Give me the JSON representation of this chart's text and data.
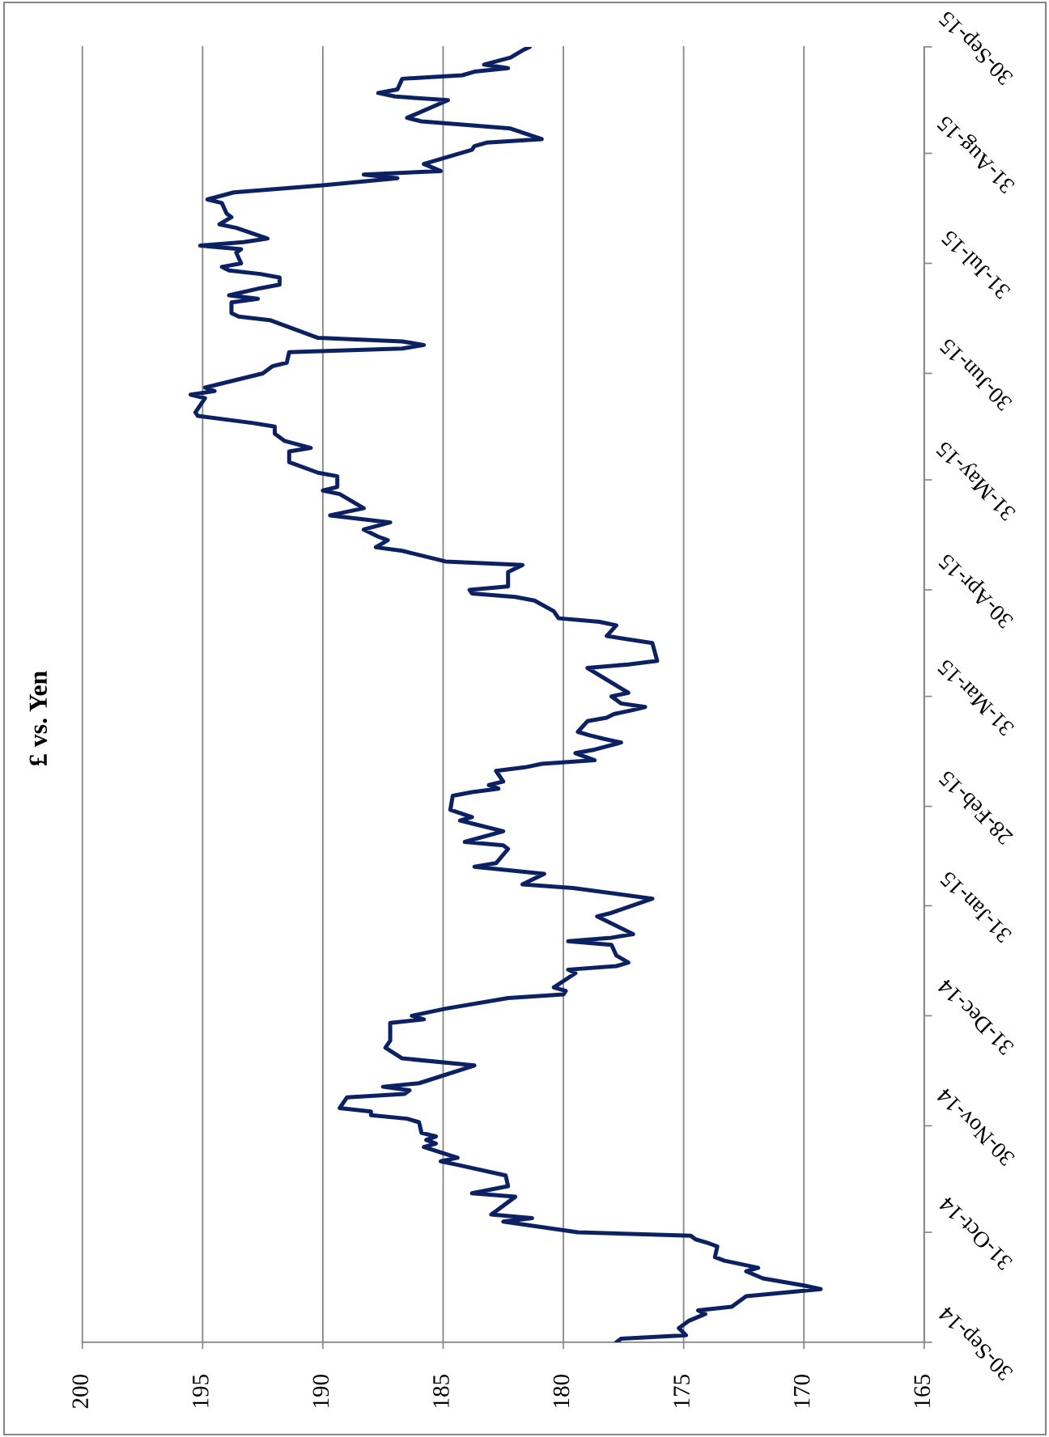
{
  "chart_data": {
    "type": "line",
    "title": "£ vs. Yen",
    "orientation": "horizontal",
    "x": [
      "2014-09-30",
      "2014-10-01",
      "2014-10-02",
      "2014-10-04",
      "2014-10-06",
      "2014-10-08",
      "2014-10-09",
      "2014-10-10",
      "2014-10-13",
      "2014-10-15",
      "2014-10-16",
      "2014-10-18",
      "2014-10-20",
      "2014-10-21",
      "2014-10-23",
      "2014-10-24",
      "2014-10-27",
      "2014-10-28",
      "2014-10-29",
      "2014-10-30",
      "2014-10-31",
      "2014-11-03",
      "2014-11-04",
      "2014-11-05",
      "2014-11-06",
      "2014-11-10",
      "2014-11-11",
      "2014-11-13",
      "2014-11-16",
      "2014-11-19",
      "2014-11-20",
      "2014-11-21",
      "2014-11-24",
      "2014-11-25",
      "2014-11-26",
      "2014-11-27",
      "2014-11-28",
      "2014-12-01",
      "2014-12-02",
      "2014-12-03",
      "2014-12-04",
      "2014-12-05",
      "2014-12-08",
      "2014-12-09",
      "2014-12-10",
      "2014-12-11",
      "2014-12-12",
      "2014-12-17",
      "2014-12-19",
      "2014-12-22",
      "2014-12-24",
      "2014-12-29",
      "2014-12-30",
      "2014-12-31",
      "2015-01-02",
      "2015-01-05",
      "2015-01-06",
      "2015-01-07",
      "2015-01-08",
      "2015-01-12",
      "2015-01-13",
      "2015-01-14",
      "2015-01-15",
      "2015-01-17",
      "2015-01-20",
      "2015-01-21",
      "2015-01-22",
      "2015-01-23",
      "2015-01-28",
      "2015-01-29",
      "2015-02-02",
      "2015-02-05",
      "2015-02-06",
      "2015-02-09",
      "2015-02-11",
      "2015-02-12",
      "2015-02-16",
      "2015-02-17",
      "2015-02-18",
      "2015-02-21",
      "2015-02-23",
      "2015-02-24",
      "2015-02-25",
      "2015-02-27",
      "2015-03-03",
      "2015-03-04",
      "2015-03-05",
      "2015-03-06",
      "2015-03-07",
      "2015-03-10",
      "2015-03-11",
      "2015-03-12",
      "2015-03-13",
      "2015-03-15",
      "2015-03-16",
      "2015-03-18",
      "2015-03-19",
      "2015-03-20",
      "2015-03-21",
      "2015-03-24",
      "2015-03-25",
      "2015-03-26",
      "2015-03-27",
      "2015-03-28",
      "2015-03-29",
      "2015-03-31",
      "2015-04-01",
      "2015-04-08",
      "2015-04-09",
      "2015-04-10",
      "2015-04-15",
      "2015-04-17",
      "2015-04-20",
      "2015-04-21",
      "2015-04-22",
      "2015-04-24",
      "2015-04-27",
      "2015-04-28",
      "2015-04-29",
      "2015-04-30",
      "2015-05-01",
      "2015-05-05",
      "2015-05-07",
      "2015-05-08",
      "2015-05-11",
      "2015-05-12",
      "2015-05-14",
      "2015-05-15",
      "2015-05-17",
      "2015-05-19",
      "2015-05-21",
      "2015-05-23",
      "2015-05-27",
      "2015-05-28",
      "2015-05-29",
      "2015-06-01",
      "2015-06-02",
      "2015-06-05",
      "2015-06-08",
      "2015-06-09",
      "2015-06-11",
      "2015-06-13",
      "2015-06-15",
      "2015-06-16",
      "2015-06-18",
      "2015-06-19",
      "2015-06-23",
      "2015-06-24",
      "2015-06-25",
      "2015-06-26",
      "2015-06-30",
      "2015-07-02",
      "2015-07-03",
      "2015-07-06",
      "2015-07-07",
      "2015-07-08",
      "2015-07-09",
      "2015-07-10",
      "2015-07-15",
      "2015-07-16",
      "2015-07-17",
      "2015-07-20",
      "2015-07-21",
      "2015-07-22",
      "2015-07-24",
      "2015-07-25",
      "2015-07-27",
      "2015-07-28",
      "2015-07-29",
      "2015-07-30",
      "2015-07-31",
      "2015-08-03",
      "2015-08-04",
      "2015-08-05",
      "2015-08-06",
      "2015-08-07",
      "2015-08-10",
      "2015-08-11",
      "2015-08-13",
      "2015-08-14",
      "2015-08-17",
      "2015-08-18",
      "2015-08-20",
      "2015-08-22",
      "2015-08-24",
      "2015-08-25",
      "2015-08-26",
      "2015-08-28",
      "2015-09-01",
      "2015-09-02",
      "2015-09-03",
      "2015-09-04",
      "2015-09-07",
      "2015-09-09",
      "2015-09-10",
      "2015-09-15",
      "2015-09-16",
      "2015-09-17",
      "2015-09-18",
      "2015-09-21",
      "2015-09-22",
      "2015-09-23",
      "2015-09-24",
      "2015-09-25",
      "2015-09-27",
      "2015-09-29",
      "2015-09-30"
    ],
    "values": [
      177.8,
      177.6,
      174.9,
      175.2,
      174.8,
      174.1,
      174.4,
      173.0,
      172.4,
      169.3,
      170.0,
      171.7,
      172.4,
      171.9,
      173.3,
      173.7,
      173.6,
      174.0,
      174.5,
      174.7,
      179.4,
      182.5,
      181.3,
      183.0,
      182.8,
      182.0,
      183.8,
      182.3,
      182.4,
      184.4,
      185.1,
      184.4,
      185.8,
      185.3,
      185.7,
      185.3,
      185.9,
      186.0,
      186.5,
      188.0,
      188.0,
      189.3,
      189.0,
      186.6,
      186.4,
      187.5,
      186.0,
      183.7,
      186.7,
      187.4,
      187.2,
      187.2,
      185.8,
      186.3,
      184.9,
      182.3,
      180.0,
      179.9,
      180.4,
      179.5,
      179.8,
      177.8,
      177.3,
      177.8,
      178.0,
      179.8,
      178.0,
      177.1,
      178.6,
      178.0,
      176.3,
      179.6,
      181.7,
      180.8,
      183.7,
      182.8,
      182.3,
      182.5,
      184.1,
      182.5,
      183.7,
      184.3,
      183.8,
      184.7,
      184.6,
      183.8,
      182.7,
      183.1,
      182.5,
      182.8,
      181.6,
      180.9,
      178.7,
      179.5,
      178.7,
      177.6,
      178.3,
      178.9,
      179.4,
      179.0,
      178.2,
      177.9,
      177.2,
      176.6,
      177.6,
      178.0,
      177.3,
      179.0,
      177.3,
      176.1,
      176.3,
      178.2,
      177.8,
      178.5,
      180.2,
      180.4,
      181.2,
      182.0,
      183.8,
      183.9,
      182.3,
      182.3,
      181.7,
      184.9,
      186.7,
      187.8,
      187.3,
      187.7,
      188.3,
      187.2,
      189.7,
      188.3,
      189.3,
      190.0,
      189.4,
      189.4,
      190.2,
      191.4,
      191.4,
      190.5,
      191.6,
      192.0,
      192.0,
      192.9,
      195.2,
      195.3,
      194.9,
      195.5,
      194.5,
      194.9,
      192.5,
      192.1,
      191.5,
      191.4,
      186.7,
      185.8,
      186.7,
      190.2,
      192.2,
      193.5,
      193.8,
      193.8,
      192.7,
      193.9,
      192.6,
      191.8,
      191.8,
      192.6,
      193.9,
      194.2,
      193.4,
      193.6,
      193.4,
      195.1,
      193.3,
      192.3,
      193.6,
      194.3,
      193.8,
      194.0,
      194.2,
      194.8,
      193.7,
      190.0,
      186.9,
      188.3,
      185.1,
      185.8,
      183.8,
      183.7,
      183.2,
      180.9,
      182.2,
      185.9,
      186.5,
      184.8,
      187.0,
      187.7,
      186.9,
      186.7,
      184.2,
      183.7,
      182.3,
      183.3,
      182.2,
      181.7,
      181.4
    ],
    "color": "#0b2161",
    "xlim": [
      200,
      165
    ],
    "xticks": [
      200,
      195,
      190,
      185,
      180,
      175,
      170,
      165
    ],
    "ylim": [
      "2014-09-30",
      "2015-09-30"
    ],
    "yticks": [
      {
        "value": "2014-09-30",
        "label": "30-Sep-14"
      },
      {
        "value": "2014-10-31",
        "label": "31-Oct-14"
      },
      {
        "value": "2014-11-30",
        "label": "30-Nov-14"
      },
      {
        "value": "2014-12-31",
        "label": "31-Dec-14"
      },
      {
        "value": "2015-01-31",
        "label": "31-Jan-15"
      },
      {
        "value": "2015-02-28",
        "label": "28-Feb-15"
      },
      {
        "value": "2015-03-31",
        "label": "31-Mar-15"
      },
      {
        "value": "2015-04-30",
        "label": "30-Apr-15"
      },
      {
        "value": "2015-05-31",
        "label": "31-May-15"
      },
      {
        "value": "2015-06-30",
        "label": "30-Jun-15"
      },
      {
        "value": "2015-07-31",
        "label": "31-Jul-15"
      },
      {
        "value": "2015-08-31",
        "label": "31-Aug-15"
      },
      {
        "value": "2015-09-30",
        "label": "30-Sep-15"
      }
    ],
    "grid": "x"
  }
}
